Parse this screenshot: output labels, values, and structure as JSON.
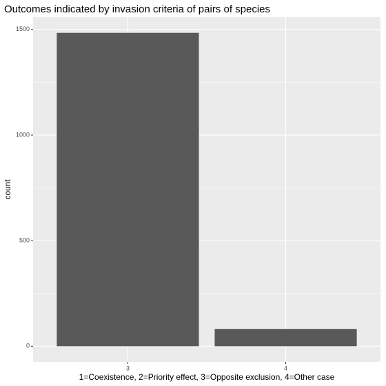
{
  "chart_data": {
    "type": "bar",
    "title": "Outcomes indicated by invasion criteria of pairs of species",
    "x_label": "1=Coexistence, 2=Priority effect, 3=Opposite exclusion, 4=Other case",
    "y_label": "count",
    "categories": [
      "3",
      "4"
    ],
    "values": [
      1484,
      82
    ],
    "color": "#595959",
    "ylim": [
      -74,
      1558
    ],
    "yticks": [
      0,
      500,
      1000,
      1500
    ],
    "y_minor_ticks": [
      250,
      750,
      1250
    ],
    "grid": true
  }
}
